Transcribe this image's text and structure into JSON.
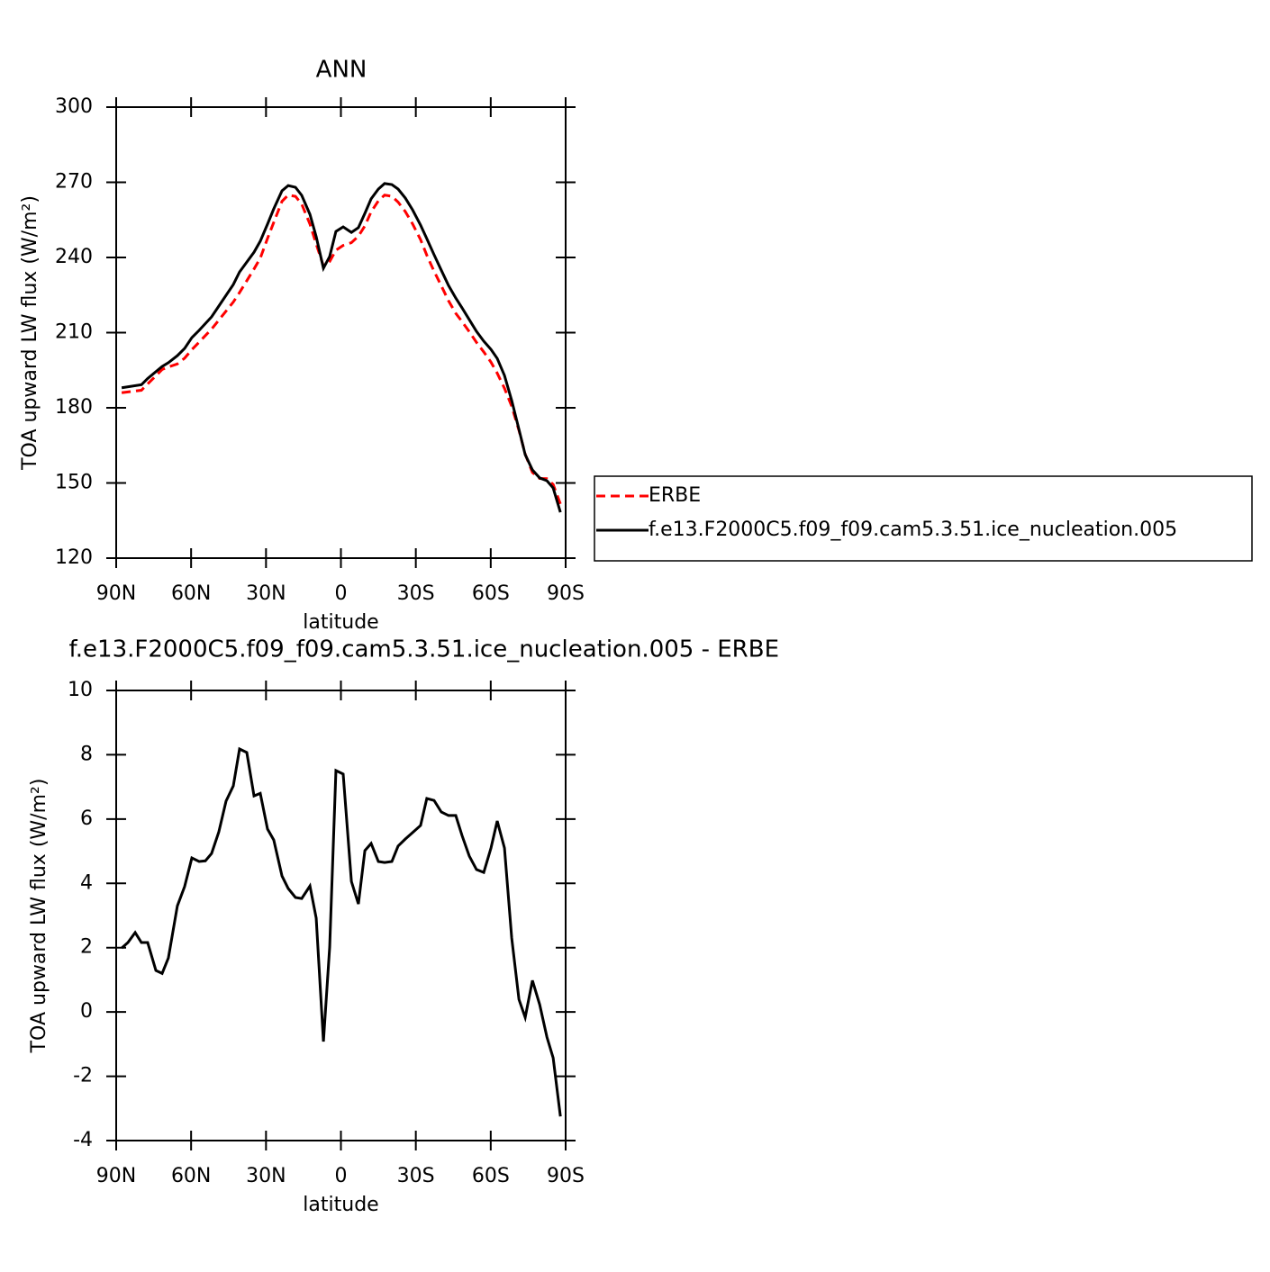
{
  "chart_data": [
    {
      "type": "line",
      "title": "ANN",
      "xlabel": "latitude",
      "ylabel": "TOA upward LW flux (W/m²)",
      "x": [
        87.8,
        79.9,
        77.4,
        71.6,
        69.1,
        65.5,
        62.6,
        59.7,
        56.8,
        51.8,
        48.9,
        43.1,
        40.6,
        34.8,
        32.3,
        29.4,
        26.9,
        23.6,
        21.1,
        18.2,
        15.7,
        12.4,
        9.9,
        7.0,
        4.5,
        2.0,
        -0.9,
        -4.2,
        -7.0,
        -9.6,
        -12.1,
        -15.0,
        -17.5,
        -20.4,
        -22.9,
        -25.8,
        -28.7,
        -31.9,
        -34.4,
        -37.3,
        -40.2,
        -43.1,
        -46.0,
        -48.5,
        -51.4,
        -54.3,
        -57.2,
        -60.1,
        -62.6,
        -65.5,
        -68.4,
        -71.3,
        -73.8,
        -76.7,
        -79.6,
        -82.5,
        -85.0,
        -87.9
      ],
      "series": [
        {
          "name": "ERBE",
          "color": "#ff0000",
          "line_style": "dashed",
          "values": [
            186.0,
            187.0,
            189.5,
            195.3,
            196.3,
            197.5,
            199.8,
            203.2,
            206.2,
            211.4,
            215.0,
            222.2,
            226.0,
            235.4,
            239.7,
            247.6,
            254.0,
            262.4,
            264.9,
            264.4,
            261.3,
            253.3,
            245.4,
            236.6,
            238.4,
            242.9,
            244.8,
            245.9,
            248.5,
            252.6,
            258.2,
            262.6,
            264.9,
            264.4,
            262.1,
            258.3,
            253.4,
            247.1,
            240.9,
            234.5,
            228.7,
            222.7,
            217.7,
            214.4,
            210.4,
            206.1,
            202.3,
            198.2,
            193.8,
            187.8,
            180.6,
            171.0,
            161.5,
            154.2,
            151.8,
            151.7,
            149.4,
            141.6
          ]
        },
        {
          "name": "f.e13.F2000C5.f09_f09.cam5.3.51.ice_nucleation.005",
          "color": "#000000",
          "line_style": "solid",
          "values": [
            188.0,
            189.2,
            191.7,
            196.5,
            198.0,
            200.8,
            203.7,
            208.0,
            210.9,
            216.3,
            220.6,
            229.2,
            234.2,
            242.1,
            246.5,
            253.3,
            259.4,
            266.6,
            268.7,
            268.0,
            264.8,
            257.2,
            248.3,
            235.7,
            240.4,
            250.4,
            252.2,
            250.0,
            251.9,
            257.6,
            263.4,
            267.3,
            269.5,
            269.1,
            267.3,
            263.7,
            259.0,
            252.9,
            247.5,
            241.1,
            234.9,
            228.8,
            223.8,
            219.9,
            215.2,
            210.5,
            206.6,
            203.3,
            199.7,
            192.9,
            182.9,
            171.4,
            161.3,
            155.2,
            152.0,
            150.9,
            148.0,
            138.3
          ]
        }
      ],
      "xlim": [
        90,
        -90
      ],
      "xticks": [
        {
          "value": 90,
          "label": "90N"
        },
        {
          "value": 60,
          "label": "60N"
        },
        {
          "value": 30,
          "label": "30N"
        },
        0,
        {
          "value": -30,
          "label": "30S"
        },
        {
          "value": -60,
          "label": "60S"
        },
        {
          "value": -90,
          "label": "90S"
        }
      ],
      "ylim": [
        120,
        300
      ],
      "yticks": [
        120,
        150,
        180,
        210,
        240,
        270,
        300
      ],
      "legend": "right"
    },
    {
      "type": "line",
      "title": "f.e13.F2000C5.f09_f09.cam5.3.51.ice_nucleation.005 - ERBE",
      "xlabel": "latitude",
      "ylabel": "TOA upward LW flux (W/m²)",
      "x": [
        87.8,
        85.3,
        82.4,
        79.9,
        77.4,
        74.1,
        71.6,
        69.1,
        65.5,
        62.6,
        59.7,
        56.8,
        54.3,
        51.8,
        48.9,
        46.0,
        43.1,
        40.6,
        37.7,
        34.8,
        32.3,
        29.4,
        26.9,
        23.6,
        21.1,
        18.2,
        15.7,
        12.4,
        9.9,
        7.0,
        4.5,
        2.0,
        -0.9,
        -4.2,
        -7.0,
        -9.6,
        -12.1,
        -15.0,
        -17.5,
        -20.4,
        -22.9,
        -25.8,
        -28.7,
        -31.9,
        -34.4,
        -37.3,
        -40.2,
        -43.1,
        -46.0,
        -48.5,
        -51.4,
        -54.3,
        -57.2,
        -60.1,
        -62.6,
        -65.5,
        -68.4,
        -71.3,
        -73.8,
        -76.7,
        -79.6,
        -82.5,
        -85.0,
        -87.9
      ],
      "series": [
        {
          "color": "#000000",
          "line_style": "solid",
          "values": [
            1.99,
            2.16,
            2.47,
            2.16,
            2.16,
            1.29,
            1.2,
            1.68,
            3.3,
            3.9,
            4.79,
            4.68,
            4.7,
            4.93,
            5.6,
            6.56,
            7.03,
            8.18,
            8.07,
            6.72,
            6.8,
            5.69,
            5.35,
            4.23,
            3.84,
            3.56,
            3.53,
            3.92,
            2.92,
            -0.92,
            2.02,
            7.51,
            7.4,
            4.06,
            3.36,
            5.02,
            5.24,
            4.68,
            4.65,
            4.68,
            5.16,
            5.38,
            5.58,
            5.8,
            6.64,
            6.58,
            6.22,
            6.11,
            6.11,
            5.49,
            4.85,
            4.43,
            4.34,
            5.1,
            5.94,
            5.1,
            2.3,
            0.39,
            -0.17,
            0.98,
            0.23,
            -0.78,
            -1.43,
            -3.25
          ]
        }
      ],
      "xlim": [
        90,
        -90
      ],
      "xticks": [
        {
          "value": 90,
          "label": "90N"
        },
        {
          "value": 60,
          "label": "60N"
        },
        {
          "value": 30,
          "label": "30N"
        },
        0,
        {
          "value": -30,
          "label": "30S"
        },
        {
          "value": -60,
          "label": "60S"
        },
        {
          "value": -90,
          "label": "90S"
        }
      ],
      "ylim": [
        -4,
        10
      ],
      "yticks": [
        -4,
        -2,
        0,
        2,
        4,
        6,
        8,
        10
      ]
    }
  ]
}
